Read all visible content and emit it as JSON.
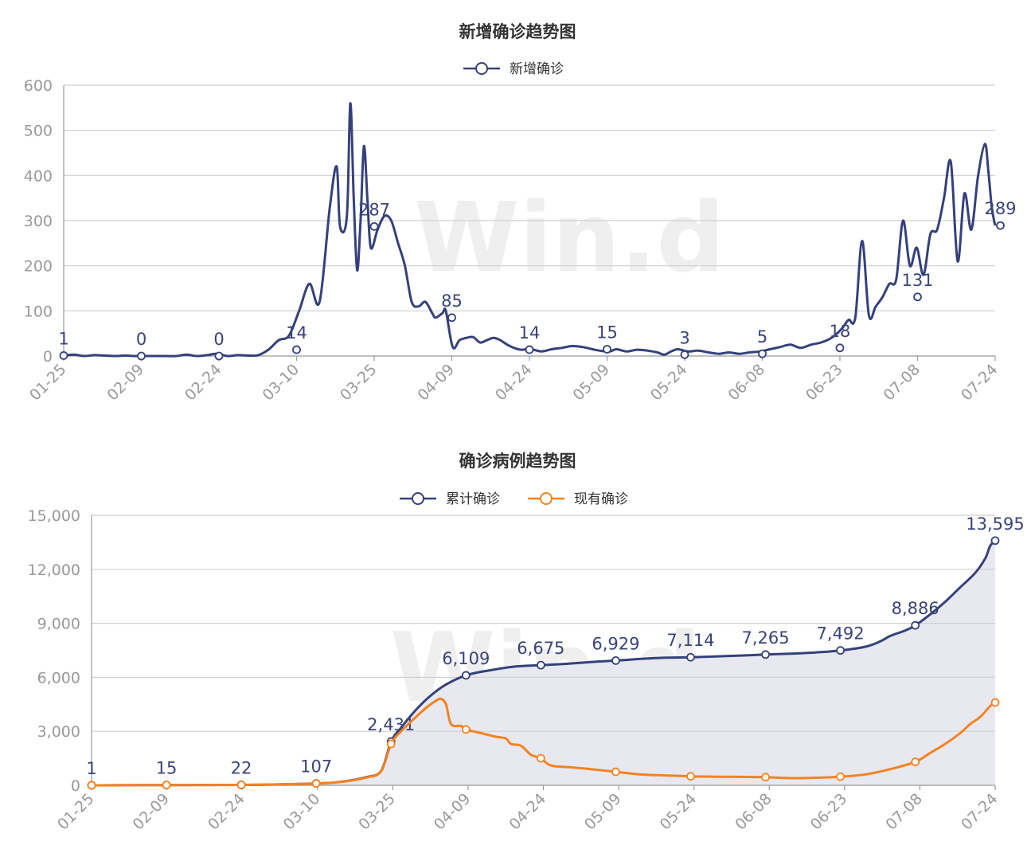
{
  "charts": [
    {
      "title": "新增确诊趋势图",
      "legend": [
        {
          "label": "新增确诊",
          "color": "#34417b"
        }
      ]
    },
    {
      "title": "确诊病例趋势图",
      "legend": [
        {
          "label": "累计确诊",
          "color": "#34417b"
        },
        {
          "label": "现有确诊",
          "color": "#f58220"
        }
      ]
    }
  ],
  "watermark": "Win.d",
  "chart_data": [
    {
      "type": "line",
      "title": "新增确诊趋势图",
      "x_ticks": [
        "01-25",
        "02-09",
        "02-24",
        "03-10",
        "03-25",
        "04-09",
        "04-24",
        "05-09",
        "05-24",
        "06-08",
        "06-23",
        "07-08",
        "07-24"
      ],
      "y_ticks": [
        "0",
        "100",
        "200",
        "300",
        "400",
        "500",
        "600"
      ],
      "ylim": [
        0,
        600
      ],
      "grid": true,
      "legend_position": "top-center",
      "series": [
        {
          "name": "新增确诊",
          "color": "#34417b",
          "points": [
            [
              0,
              1
            ],
            [
              3,
              3
            ],
            [
              6,
              0
            ],
            [
              9,
              2
            ],
            [
              12,
              1
            ],
            [
              15,
              0
            ],
            [
              18,
              1
            ],
            [
              21,
              0
            ],
            [
              24,
              0
            ],
            [
              27,
              0
            ],
            [
              30,
              0
            ],
            [
              33,
              0
            ],
            [
              36,
              3
            ],
            [
              39,
              0
            ],
            [
              42,
              2
            ],
            [
              45,
              5
            ],
            [
              48,
              0
            ],
            [
              51,
              2
            ],
            [
              54,
              1
            ],
            [
              57,
              2
            ],
            [
              60,
              14
            ],
            [
              63,
              35
            ],
            [
              66,
              45
            ],
            [
              69,
              100
            ],
            [
              72,
              160
            ],
            [
              75,
              120
            ],
            [
              78,
              330
            ],
            [
              80,
              420
            ],
            [
              81,
              287
            ],
            [
              83,
              310
            ],
            [
              84,
              560
            ],
            [
              85,
              350
            ],
            [
              86,
              190
            ],
            [
              87,
              300
            ],
            [
              88,
              465
            ],
            [
              89,
              350
            ],
            [
              90,
              240
            ],
            [
              92,
              280
            ],
            [
              94,
              310
            ],
            [
              96,
              300
            ],
            [
              98,
              250
            ],
            [
              100,
              200
            ],
            [
              102,
              120
            ],
            [
              104,
              110
            ],
            [
              106,
              120
            ],
            [
              108,
              95
            ],
            [
              109,
              85
            ],
            [
              111,
              95
            ],
            [
              112,
              100
            ],
            [
              114,
              20
            ],
            [
              116,
              35
            ],
            [
              118,
              40
            ],
            [
              120,
              42
            ],
            [
              122,
              30
            ],
            [
              124,
              35
            ],
            [
              126,
              40
            ],
            [
              128,
              35
            ],
            [
              130,
              25
            ],
            [
              132,
              18
            ],
            [
              134,
              14
            ],
            [
              137,
              15
            ],
            [
              140,
              10
            ],
            [
              143,
              15
            ],
            [
              146,
              18
            ],
            [
              149,
              22
            ],
            [
              152,
              20
            ],
            [
              155,
              15
            ],
            [
              157,
              12
            ],
            [
              160,
              10
            ],
            [
              162,
              15
            ],
            [
              165,
              10
            ],
            [
              168,
              14
            ],
            [
              171,
              12
            ],
            [
              174,
              8
            ],
            [
              176,
              3
            ],
            [
              178,
              10
            ],
            [
              180,
              15
            ],
            [
              183,
              10
            ],
            [
              186,
              12
            ],
            [
              189,
              8
            ],
            [
              192,
              5
            ],
            [
              195,
              8
            ],
            [
              198,
              5
            ],
            [
              201,
              8
            ],
            [
              204,
              10
            ],
            [
              207,
              15
            ],
            [
              210,
              20
            ],
            [
              213,
              25
            ],
            [
              216,
              18
            ],
            [
              219,
              25
            ],
            [
              222,
              30
            ],
            [
              225,
              40
            ],
            [
              228,
              60
            ],
            [
              230,
              80
            ],
            [
              232,
              85
            ],
            [
              234,
              255
            ],
            [
              236,
              90
            ],
            [
              238,
              110
            ],
            [
              240,
              131
            ],
            [
              242,
              160
            ],
            [
              244,
              170
            ],
            [
              246,
              300
            ],
            [
              248,
              200
            ],
            [
              250,
              240
            ],
            [
              252,
              180
            ],
            [
              254,
              270
            ],
            [
              256,
              280
            ],
            [
              258,
              350
            ],
            [
              260,
              430
            ],
            [
              262,
              210
            ],
            [
              264,
              360
            ],
            [
              266,
              280
            ],
            [
              268,
              400
            ],
            [
              270,
              470
            ],
            [
              271,
              410
            ],
            [
              272,
              330
            ],
            [
              273,
              289
            ]
          ],
          "labels": [
            {
              "x": 0,
              "y": 1,
              "text": "1"
            },
            {
              "x": 15,
              "y": 0,
              "text": "0"
            },
            {
              "x": 30,
              "y": 0,
              "text": "0"
            },
            {
              "x": 45,
              "y": 14,
              "text": "14"
            },
            {
              "x": 60,
              "y": 287,
              "text": "287"
            },
            {
              "x": 75,
              "y": 85,
              "text": "85"
            },
            {
              "x": 90,
              "y": 14,
              "text": "14"
            },
            {
              "x": 105,
              "y": 15,
              "text": "15"
            },
            {
              "x": 120,
              "y": 3,
              "text": "3"
            },
            {
              "x": 135,
              "y": 5,
              "text": "5"
            },
            {
              "x": 150,
              "y": 18,
              "text": "18"
            },
            {
              "x": 165,
              "y": 131,
              "text": "131"
            },
            {
              "x": 181,
              "y": 289,
              "text": "289"
            }
          ]
        }
      ]
    },
    {
      "type": "area",
      "title": "确诊病例趋势图",
      "x_ticks": [
        "01-25",
        "02-09",
        "02-24",
        "03-10",
        "03-25",
        "04-09",
        "04-24",
        "05-09",
        "05-24",
        "06-08",
        "06-23",
        "07-08",
        "07-24"
      ],
      "y_ticks": [
        "0",
        "3,000",
        "6,000",
        "9,000",
        "12,000",
        "15,000"
      ],
      "ylim": [
        0,
        15000
      ],
      "grid": true,
      "legend_position": "top-center",
      "series": [
        {
          "name": "累计确诊",
          "color": "#34417b",
          "fill": "#e8e9f0",
          "points": [
            [
              0,
              1
            ],
            [
              15,
              15
            ],
            [
              30,
              22
            ],
            [
              45,
              107
            ],
            [
              50,
              200
            ],
            [
              55,
              450
            ],
            [
              58,
              800
            ],
            [
              60,
              2431
            ],
            [
              62,
              3200
            ],
            [
              65,
              4200
            ],
            [
              68,
              5000
            ],
            [
              71,
              5600
            ],
            [
              75,
              6109
            ],
            [
              80,
              6400
            ],
            [
              85,
              6600
            ],
            [
              90,
              6675
            ],
            [
              95,
              6750
            ],
            [
              100,
              6850
            ],
            [
              105,
              6929
            ],
            [
              110,
              7020
            ],
            [
              115,
              7090
            ],
            [
              120,
              7114
            ],
            [
              125,
              7160
            ],
            [
              130,
              7210
            ],
            [
              135,
              7265
            ],
            [
              140,
              7310
            ],
            [
              145,
              7380
            ],
            [
              150,
              7492
            ],
            [
              155,
              7700
            ],
            [
              158,
              8000
            ],
            [
              160,
              8300
            ],
            [
              163,
              8600
            ],
            [
              165,
              8886
            ],
            [
              168,
              9500
            ],
            [
              171,
              10200
            ],
            [
              174,
              11000
            ],
            [
              177,
              11800
            ],
            [
              179,
              12600
            ],
            [
              180,
              13300
            ],
            [
              181,
              13595
            ]
          ],
          "labels": [
            {
              "x": 0,
              "text": "1"
            },
            {
              "x": 15,
              "text": "15"
            },
            {
              "x": 30,
              "text": "22"
            },
            {
              "x": 45,
              "text": "107"
            },
            {
              "x": 60,
              "text": "2,431"
            },
            {
              "x": 75,
              "text": "6,109"
            },
            {
              "x": 90,
              "text": "6,675"
            },
            {
              "x": 105,
              "text": "6,929"
            },
            {
              "x": 120,
              "text": "7,114"
            },
            {
              "x": 135,
              "text": "7,265"
            },
            {
              "x": 150,
              "text": "7,492"
            },
            {
              "x": 165,
              "text": "8,886"
            },
            {
              "x": 181,
              "text": "13,595"
            }
          ]
        },
        {
          "name": "现有确诊",
          "color": "#f58220",
          "points": [
            [
              0,
              1
            ],
            [
              15,
              15
            ],
            [
              30,
              22
            ],
            [
              45,
              100
            ],
            [
              50,
              190
            ],
            [
              55,
              430
            ],
            [
              58,
              780
            ],
            [
              60,
              2300
            ],
            [
              62,
              3000
            ],
            [
              65,
              3800
            ],
            [
              67,
              4300
            ],
            [
              69,
              4700
            ],
            [
              70,
              4800
            ],
            [
              71,
              4500
            ],
            [
              72,
              3400
            ],
            [
              74,
              3300
            ],
            [
              75,
              3100
            ],
            [
              78,
              2900
            ],
            [
              81,
              2700
            ],
            [
              83,
              2600
            ],
            [
              84,
              2300
            ],
            [
              86,
              2200
            ],
            [
              88,
              1700
            ],
            [
              90,
              1500
            ],
            [
              92,
              1100
            ],
            [
              96,
              1000
            ],
            [
              100,
              900
            ],
            [
              105,
              750
            ],
            [
              110,
              600
            ],
            [
              115,
              550
            ],
            [
              120,
              500
            ],
            [
              125,
              480
            ],
            [
              130,
              470
            ],
            [
              135,
              450
            ],
            [
              140,
              400
            ],
            [
              145,
              420
            ],
            [
              150,
              480
            ],
            [
              155,
              600
            ],
            [
              160,
              900
            ],
            [
              165,
              1300
            ],
            [
              168,
              1800
            ],
            [
              171,
              2300
            ],
            [
              174,
              2900
            ],
            [
              176,
              3400
            ],
            [
              178,
              3800
            ],
            [
              180,
              4400
            ],
            [
              181,
              4600
            ]
          ],
          "labels": []
        }
      ]
    }
  ]
}
